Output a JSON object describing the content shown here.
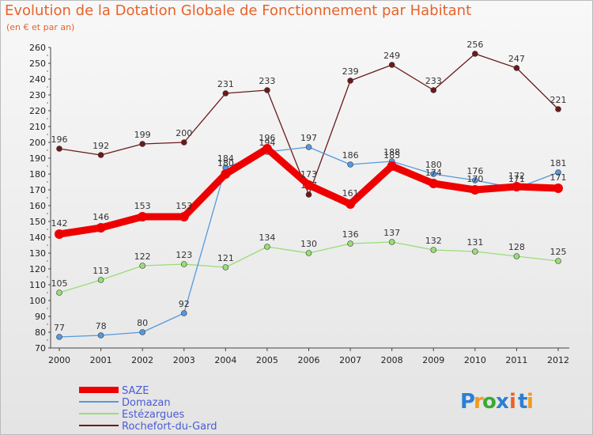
{
  "chart_data": {
    "type": "line",
    "title": "Evolution de la Dotation Globale de Fonctionnement par Habitant",
    "subtitle": "(en € et par an)",
    "x": [
      "2000",
      "2001",
      "2002",
      "2003",
      "2004",
      "2005",
      "2006",
      "2007",
      "2008",
      "2009",
      "2010",
      "2011",
      "2012"
    ],
    "ylim": [
      70,
      260
    ],
    "yticks": [
      70,
      80,
      90,
      100,
      110,
      120,
      130,
      140,
      150,
      160,
      170,
      180,
      190,
      200,
      210,
      220,
      230,
      240,
      250,
      260
    ],
    "grid": false,
    "legend_position": "bottom-left",
    "series": [
      {
        "name": "Rochefort-du-Gard",
        "color": "#6b1a1a",
        "values": [
          196,
          192,
          199,
          200,
          231,
          233,
          167,
          239,
          249,
          233,
          256,
          247,
          221
        ],
        "labels": [
          "196",
          "192",
          "199",
          "200",
          "231",
          "233",
          "167",
          "239",
          "249",
          "233",
          "256",
          "247",
          "221"
        ]
      },
      {
        "name": "Estézargues",
        "color": "#99dd77",
        "values": [
          105,
          113,
          122,
          123,
          121,
          134,
          130,
          136,
          137,
          132,
          131,
          128,
          125
        ],
        "labels": [
          "105",
          "113",
          "122",
          "123",
          "121",
          "134",
          "130",
          "136",
          "137",
          "132",
          "131",
          "128",
          "125"
        ]
      },
      {
        "name": "Domazan",
        "color": "#5599dd",
        "values": [
          77,
          78,
          80,
          92,
          184,
          194,
          197,
          186,
          188,
          180,
          176,
          171,
          181
        ],
        "labels": [
          "77",
          "78",
          "80",
          "92",
          "184",
          "194",
          "197",
          "186",
          "188",
          "180",
          "176",
          "171",
          "181"
        ]
      },
      {
        "name": "SAZE",
        "color": "#ee0000",
        "values": [
          142,
          146,
          153,
          153,
          180,
          196,
          173,
          161,
          185,
          174,
          170,
          172,
          171
        ],
        "labels": [
          "142",
          "146",
          "153",
          "153",
          "180",
          "196",
          "173",
          "161",
          "185",
          "174",
          "170",
          "172",
          "171"
        ]
      }
    ],
    "legend": [
      "SAZE",
      "Domazan",
      "Estézargues",
      "Rochefort-du-Gard"
    ]
  },
  "logo": {
    "text": "Proxiti",
    "letters": [
      "P",
      "r",
      "o",
      "x",
      "i",
      "t",
      "i"
    ],
    "colors": [
      "#2a7fd4",
      "#f39a1b",
      "#3aaa35",
      "#2a7fd4",
      "#e8622a",
      "#2a7fd4",
      "#f39a1b"
    ]
  }
}
